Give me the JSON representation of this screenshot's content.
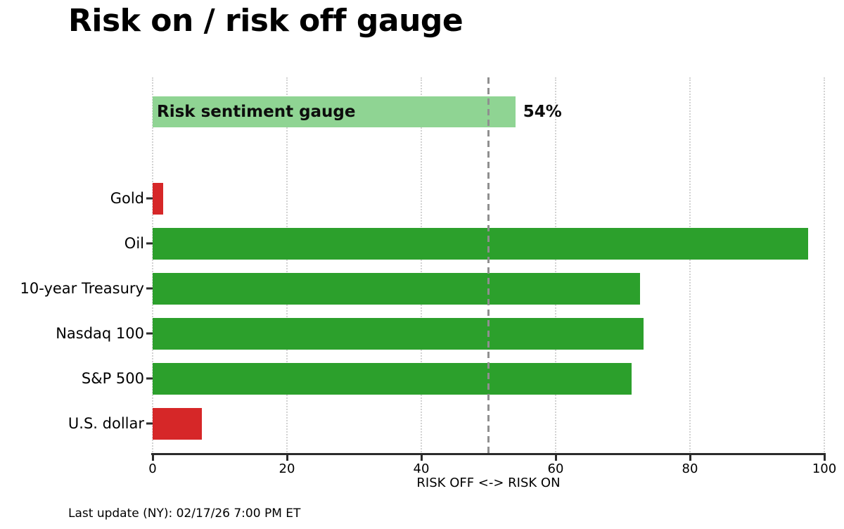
{
  "title": "Risk on / risk off gauge",
  "footer": "Last update (NY): 02/17/26 7:00 PM ET",
  "chart_data": {
    "type": "bar",
    "orientation": "horizontal",
    "title": "Risk on / risk off gauge",
    "xlabel": "RISK OFF <-> RISK ON",
    "xlim": [
      0,
      100
    ],
    "xticks": [
      0,
      20,
      40,
      60,
      80,
      100
    ],
    "grid": "vertical dotted gridlines at each x tick",
    "reference_line": {
      "x": 50,
      "style": "dashed",
      "color": "#8f8f8f"
    },
    "gauge": {
      "label": "Risk sentiment gauge",
      "value": 54,
      "value_label": "54%",
      "color": "#8fd493"
    },
    "bars": [
      {
        "label": "Gold",
        "value": 1.6,
        "color": "#d62728",
        "sentiment": "risk-off"
      },
      {
        "label": "Oil",
        "value": 97.6,
        "color": "#2ca02c",
        "sentiment": "risk-on"
      },
      {
        "label": "10-year Treasury",
        "value": 72.6,
        "color": "#2ca02c",
        "sentiment": "risk-on"
      },
      {
        "label": "Nasdaq 100",
        "value": 73.1,
        "color": "#2ca02c",
        "sentiment": "risk-on"
      },
      {
        "label": "S&P 500",
        "value": 71.3,
        "color": "#2ca02c",
        "sentiment": "risk-on"
      },
      {
        "label": "U.S. dollar",
        "value": 7.3,
        "color": "#d62728",
        "sentiment": "risk-off"
      }
    ],
    "colors": {
      "risk_on": "#2ca02c",
      "risk_off": "#d62728",
      "gauge": "#8fd493",
      "axis": "#2b2b2b"
    }
  }
}
